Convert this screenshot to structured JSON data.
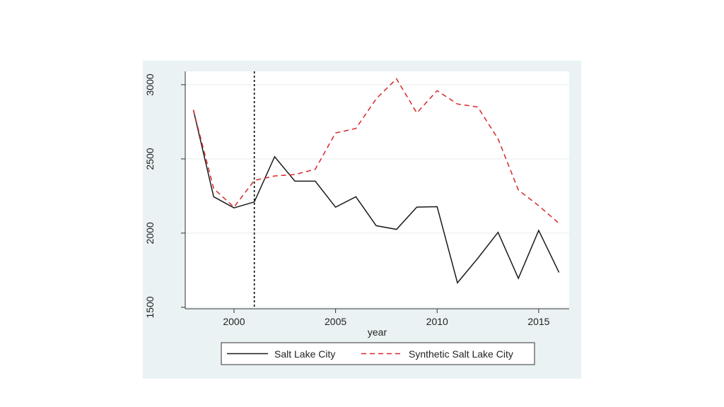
{
  "colors": {
    "outer_background": "#eaf2f3",
    "plot_background": "#ffffff",
    "grid": "#e6ecee",
    "actual_series": "#1a1a1a",
    "synthetic_series": "#d62728",
    "treatment_line": "#000000"
  },
  "chart_data": {
    "type": "line",
    "title": "",
    "xlabel": "year",
    "ylabel": "",
    "xlim": [
      1997.6,
      2016.5
    ],
    "ylim": [
      1490,
      3090
    ],
    "x_ticks": [
      2000,
      2005,
      2010,
      2015
    ],
    "y_ticks": [
      1500,
      2000,
      2500,
      3000
    ],
    "grid": true,
    "legend_position": "bottom",
    "treatment_year": 2001,
    "x": [
      1998,
      1999,
      2000,
      2001,
      2002,
      2003,
      2004,
      2005,
      2006,
      2007,
      2008,
      2009,
      2010,
      2011,
      2012,
      2013,
      2014,
      2015,
      2016
    ],
    "series": [
      {
        "name": "Salt Lake City",
        "style": "solid",
        "values": [
          2830,
          2245,
          2170,
          2210,
          2515,
          2350,
          2350,
          2175,
          2245,
          2050,
          2025,
          2175,
          2178,
          1665,
          1830,
          2005,
          1695,
          2018,
          1735
        ]
      },
      {
        "name": "Synthetic Salt Lake City",
        "style": "dashed",
        "values": [
          2830,
          2300,
          2175,
          2355,
          2385,
          2395,
          2430,
          2675,
          2705,
          2905,
          3040,
          2810,
          2960,
          2870,
          2850,
          2635,
          2290,
          2185,
          2065
        ]
      }
    ]
  }
}
